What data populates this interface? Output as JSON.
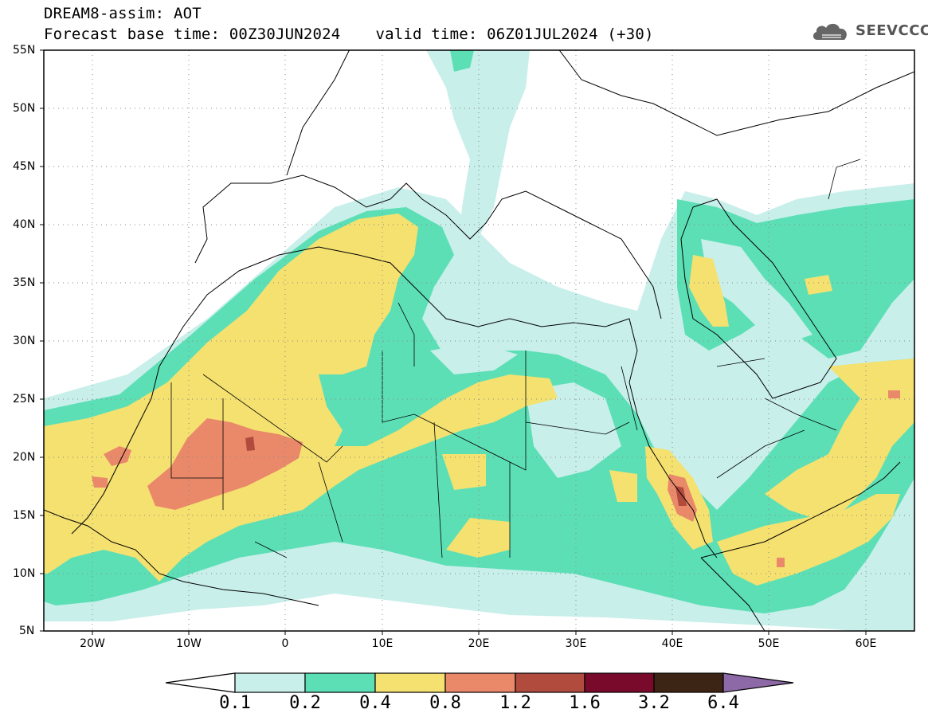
{
  "title": {
    "line1": "DREAM8-assim: AOT",
    "base_time": "Forecast base time: 00Z30JUN2024",
    "valid_time": "valid time: 06Z01JUL2024 (+30)"
  },
  "logo": {
    "text": "SEEVCCC",
    "icon": "cloud-logo-icon"
  },
  "map": {
    "lat_labels": [
      "55N",
      "50N",
      "45N",
      "40N",
      "35N",
      "30N",
      "25N",
      "20N",
      "15N",
      "10N",
      "5N"
    ],
    "lon_labels": [
      "20W",
      "10W",
      "0",
      "10E",
      "20E",
      "30E",
      "40E",
      "50E",
      "60E"
    ],
    "extent": {
      "lon_min": -25,
      "lon_max": 65,
      "lat_min": 5,
      "lat_max": 55
    }
  },
  "colorbar": {
    "labels": [
      "0.1",
      "0.2",
      "0.4",
      "0.8",
      "1.2",
      "1.6",
      "3.2",
      "6.4"
    ],
    "colors": [
      "#ffffff",
      "#c8efea",
      "#5ddfb6",
      "#f5e170",
      "#e9896a",
      "#b14b3e",
      "#7a0a2b",
      "#3d2516",
      "#8e69a8"
    ]
  }
}
